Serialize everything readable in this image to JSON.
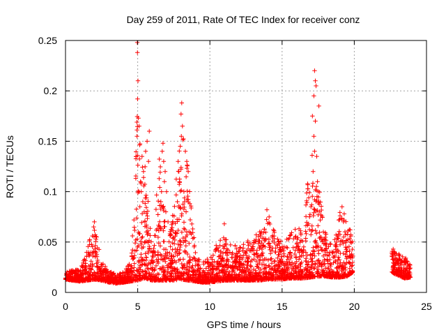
{
  "chart_data": {
    "type": "scatter",
    "title": "Day 259 of 2011, Rate Of TEC Index for receiver conz",
    "xlabel": "GPS time / hours",
    "ylabel": "ROTI / TECUs",
    "xlim": [
      0,
      25
    ],
    "ylim": [
      0,
      0.25
    ],
    "xticks": [
      "0",
      "5",
      "10",
      "15",
      "20",
      "25"
    ],
    "yticks": [
      "0",
      "0.05",
      "0.1",
      "0.15",
      "0.2",
      "0.25"
    ],
    "grid": true,
    "marker": "+",
    "colors": {
      "series": "#ff0000"
    },
    "envelope": [
      [
        0.0,
        0.013,
        0.021
      ],
      [
        0.5,
        0.012,
        0.022
      ],
      [
        1.0,
        0.011,
        0.023
      ],
      [
        1.5,
        0.012,
        0.045
      ],
      [
        2.0,
        0.013,
        0.066
      ],
      [
        2.5,
        0.012,
        0.03
      ],
      [
        3.0,
        0.01,
        0.022
      ],
      [
        3.5,
        0.009,
        0.018
      ],
      [
        4.0,
        0.01,
        0.02
      ],
      [
        4.5,
        0.011,
        0.03
      ],
      [
        5.0,
        0.012,
        0.19
      ],
      [
        5.5,
        0.014,
        0.13
      ],
      [
        6.0,
        0.012,
        0.05
      ],
      [
        6.5,
        0.012,
        0.14
      ],
      [
        7.0,
        0.012,
        0.05
      ],
      [
        7.5,
        0.012,
        0.09
      ],
      [
        8.0,
        0.013,
        0.17
      ],
      [
        8.5,
        0.012,
        0.12
      ],
      [
        9.0,
        0.011,
        0.04
      ],
      [
        9.5,
        0.01,
        0.03
      ],
      [
        10.0,
        0.01,
        0.035
      ],
      [
        10.5,
        0.011,
        0.05
      ],
      [
        11.0,
        0.012,
        0.06
      ],
      [
        11.5,
        0.012,
        0.05
      ],
      [
        12.0,
        0.012,
        0.045
      ],
      [
        12.5,
        0.012,
        0.05
      ],
      [
        13.0,
        0.012,
        0.055
      ],
      [
        13.5,
        0.012,
        0.065
      ],
      [
        14.0,
        0.013,
        0.075
      ],
      [
        14.5,
        0.013,
        0.06
      ],
      [
        15.0,
        0.013,
        0.05
      ],
      [
        15.5,
        0.014,
        0.06
      ],
      [
        16.0,
        0.014,
        0.065
      ],
      [
        16.5,
        0.014,
        0.07
      ],
      [
        17.0,
        0.015,
        0.15
      ],
      [
        17.5,
        0.016,
        0.11
      ],
      [
        18.0,
        0.016,
        0.06
      ],
      [
        18.5,
        0.015,
        0.05
      ],
      [
        19.0,
        0.015,
        0.08
      ],
      [
        19.5,
        0.016,
        0.07
      ],
      [
        19.9,
        0.02,
        0.06
      ],
      [
        22.6,
        0.02,
        0.05
      ],
      [
        23.0,
        0.017,
        0.04
      ],
      [
        23.5,
        0.014,
        0.035
      ],
      [
        23.9,
        0.015,
        0.03
      ]
    ],
    "peaks": [
      [
        4.97,
        0.248
      ],
      [
        4.98,
        0.238
      ],
      [
        5.02,
        0.21
      ],
      [
        4.99,
        0.192
      ],
      [
        5.05,
        0.173
      ],
      [
        5.1,
        0.165
      ],
      [
        4.95,
        0.155
      ],
      [
        5.3,
        0.135
      ],
      [
        5.4,
        0.12
      ],
      [
        5.8,
        0.16
      ],
      [
        5.65,
        0.15
      ],
      [
        5.55,
        0.14
      ],
      [
        5.75,
        0.13
      ],
      [
        5.2,
        0.11
      ],
      [
        5.25,
        0.1
      ],
      [
        5.35,
        0.09
      ],
      [
        5.45,
        0.08
      ],
      [
        5.5,
        0.07
      ],
      [
        5.6,
        0.06
      ],
      [
        5.15,
        0.085
      ],
      [
        6.75,
        0.148
      ],
      [
        6.7,
        0.14
      ],
      [
        6.8,
        0.13
      ],
      [
        6.9,
        0.12
      ],
      [
        6.85,
        0.11
      ],
      [
        6.65,
        0.1
      ],
      [
        6.6,
        0.09
      ],
      [
        7.0,
        0.1
      ],
      [
        6.95,
        0.08
      ],
      [
        7.1,
        0.07
      ],
      [
        8.05,
        0.188
      ],
      [
        8.0,
        0.177
      ],
      [
        8.1,
        0.165
      ],
      [
        8.02,
        0.155
      ],
      [
        7.95,
        0.145
      ],
      [
        8.3,
        0.14
      ],
      [
        8.4,
        0.13
      ],
      [
        8.5,
        0.12
      ],
      [
        7.8,
        0.13
      ],
      [
        7.85,
        0.12
      ],
      [
        7.9,
        0.11
      ],
      [
        8.2,
        0.1
      ],
      [
        8.25,
        0.09
      ],
      [
        8.35,
        0.08
      ],
      [
        7.75,
        0.09
      ],
      [
        17.25,
        0.22
      ],
      [
        17.3,
        0.21
      ],
      [
        17.35,
        0.205
      ],
      [
        17.2,
        0.195
      ],
      [
        17.55,
        0.185
      ],
      [
        17.3,
        0.17
      ],
      [
        17.1,
        0.175
      ],
      [
        17.2,
        0.155
      ],
      [
        17.25,
        0.14
      ],
      [
        17.4,
        0.135
      ],
      [
        17.15,
        0.12
      ],
      [
        17.45,
        0.11
      ],
      [
        17.5,
        0.1
      ],
      [
        17.55,
        0.09
      ],
      [
        17.6,
        0.08
      ],
      [
        17.0,
        0.085
      ],
      [
        16.9,
        0.075
      ],
      [
        19.15,
        0.085
      ],
      [
        19.3,
        0.078
      ],
      [
        19.25,
        0.07
      ],
      [
        13.95,
        0.082
      ],
      [
        14.1,
        0.075
      ],
      [
        11.0,
        0.068
      ],
      [
        2.0,
        0.07
      ],
      [
        1.95,
        0.065
      ]
    ]
  }
}
